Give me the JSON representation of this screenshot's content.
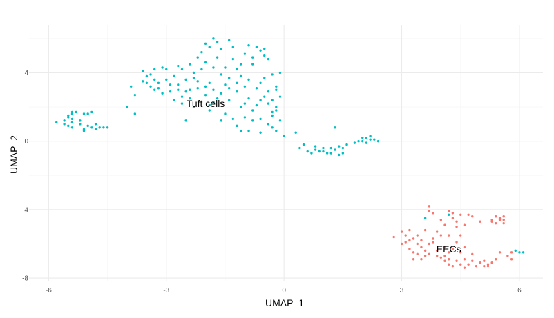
{
  "chart_data": {
    "type": "scatter",
    "title": "",
    "xlabel": "UMAP_1",
    "ylabel": "UMAP_2",
    "xlim": [
      -6.5,
      6.6
    ],
    "ylim": [
      -8.2,
      6.8
    ],
    "x_ticks": [
      -6,
      -3,
      0,
      3,
      6
    ],
    "y_ticks": [
      -8,
      -4,
      0,
      4
    ],
    "x_tick_labels": [
      "-6",
      "-3",
      "0",
      "3",
      "6"
    ],
    "y_tick_labels": [
      "-8",
      "-4",
      "0",
      "4"
    ],
    "grid": true,
    "legend": "none",
    "cluster_labels": [
      {
        "text": "Tuft cells",
        "x": -2.0,
        "y": 2.2
      },
      {
        "text": "EECs",
        "x": 4.2,
        "y": -6.3
      }
    ],
    "series": [
      {
        "color": "#00BFC4",
        "points": [
          [
            -5.8,
            1.1
          ],
          [
            -5.6,
            1.2
          ],
          [
            -5.6,
            1.0
          ],
          [
            -5.5,
            1.5
          ],
          [
            -5.5,
            1.4
          ],
          [
            -5.4,
            1.6
          ],
          [
            -5.4,
            1.7
          ],
          [
            -5.4,
            1.3
          ],
          [
            -5.3,
            1.7
          ],
          [
            -5.4,
            1.1
          ],
          [
            -5.5,
            0.9
          ],
          [
            -5.4,
            0.8
          ],
          [
            -5.2,
            1.2
          ],
          [
            -5.2,
            1.0
          ],
          [
            -5.1,
            1.6
          ],
          [
            -5.1,
            0.7
          ],
          [
            -5.0,
            1.6
          ],
          [
            -5.0,
            0.9
          ],
          [
            -4.9,
            1.7
          ],
          [
            -4.8,
            1.0
          ],
          [
            -4.8,
            0.7
          ],
          [
            -4.7,
            0.8
          ],
          [
            -4.6,
            0.8
          ],
          [
            -4.5,
            0.8
          ],
          [
            -5.1,
            0.6
          ],
          [
            -4.9,
            0.8
          ],
          [
            -4.0,
            2.0
          ],
          [
            -3.9,
            3.2
          ],
          [
            -3.8,
            2.7
          ],
          [
            -3.8,
            1.6
          ],
          [
            -3.6,
            4.1
          ],
          [
            -3.6,
            3.5
          ],
          [
            -3.5,
            3.8
          ],
          [
            -3.4,
            3.9
          ],
          [
            -3.5,
            3.4
          ],
          [
            -3.3,
            3.6
          ],
          [
            -3.3,
            3.0
          ],
          [
            -3.2,
            3.4
          ],
          [
            -3.2,
            3.1
          ],
          [
            -3.1,
            4.3
          ],
          [
            -3.0,
            4.2
          ],
          [
            -3.0,
            3.6
          ],
          [
            -2.9,
            2.9
          ],
          [
            -2.8,
            3.8
          ],
          [
            -2.8,
            2.4
          ],
          [
            -2.7,
            4.4
          ],
          [
            -2.7,
            3.3
          ],
          [
            -2.6,
            4.2
          ],
          [
            -2.6,
            2.6
          ],
          [
            -2.5,
            3.6
          ],
          [
            -2.5,
            1.2
          ],
          [
            -2.4,
            3.0
          ],
          [
            -2.4,
            2.5
          ],
          [
            -2.3,
            4.0
          ],
          [
            -2.3,
            2.0
          ],
          [
            -2.2,
            4.9
          ],
          [
            -2.2,
            3.5
          ],
          [
            -2.1,
            5.2
          ],
          [
            -2.1,
            4.2
          ],
          [
            -2.0,
            3.2
          ],
          [
            -2.0,
            5.7
          ],
          [
            -2.0,
            2.7
          ],
          [
            -1.9,
            5.5
          ],
          [
            -1.9,
            3.4
          ],
          [
            -1.9,
            1.8
          ],
          [
            -1.8,
            6.0
          ],
          [
            -1.8,
            4.3
          ],
          [
            -1.8,
            3.0
          ],
          [
            -1.7,
            5.8
          ],
          [
            -1.7,
            2.5
          ],
          [
            -1.6,
            5.4
          ],
          [
            -1.6,
            1.2
          ],
          [
            -1.5,
            4.3
          ],
          [
            -1.5,
            3.3
          ],
          [
            -1.5,
            1.6
          ],
          [
            -1.4,
            5.9
          ],
          [
            -1.4,
            3.7
          ],
          [
            -1.4,
            2.4
          ],
          [
            -1.3,
            5.5
          ],
          [
            -1.3,
            1.3
          ],
          [
            -1.2,
            3.4
          ],
          [
            -1.2,
            2.9
          ],
          [
            -1.2,
            0.9
          ],
          [
            -1.1,
            4.5
          ],
          [
            -1.1,
            3.8
          ],
          [
            -1.1,
            2.0
          ],
          [
            -1.0,
            3.2
          ],
          [
            -1.0,
            1.4
          ],
          [
            -0.9,
            5.6
          ],
          [
            -0.9,
            3.6
          ],
          [
            -0.9,
            2.5
          ],
          [
            -0.9,
            0.6
          ],
          [
            -0.8,
            4.5
          ],
          [
            -0.8,
            1.8
          ],
          [
            -0.7,
            5.5
          ],
          [
            -0.7,
            3.1
          ],
          [
            -0.7,
            2.1
          ],
          [
            -0.6,
            5.3
          ],
          [
            -0.6,
            1.3
          ],
          [
            -0.5,
            5.0
          ],
          [
            -0.5,
            3.7
          ],
          [
            -0.5,
            2.6
          ],
          [
            -0.4,
            4.8
          ],
          [
            -0.4,
            2.2
          ],
          [
            -0.4,
            1.0
          ],
          [
            -0.3,
            3.9
          ],
          [
            -0.3,
            1.7
          ],
          [
            -0.3,
            0.8
          ],
          [
            -0.2,
            3.2
          ],
          [
            -0.2,
            0.6
          ],
          [
            -0.1,
            4.0
          ],
          [
            -0.1,
            2.6
          ],
          [
            -0.1,
            1.2
          ],
          [
            -0.5,
            5.4
          ],
          [
            -1.0,
            2.2
          ],
          [
            -1.6,
            3.9
          ],
          [
            -2.4,
            4.5
          ],
          [
            -2.7,
            3.0
          ],
          [
            -1.3,
            4.8
          ],
          [
            -0.6,
            0.5
          ],
          [
            -0.8,
            4.9
          ],
          [
            -1.0,
            5.1
          ],
          [
            -1.2,
            4.2
          ],
          [
            -1.4,
            3.1
          ],
          [
            -0.8,
            1.2
          ],
          [
            -0.6,
            2.4
          ],
          [
            -0.4,
            2.9
          ],
          [
            -0.3,
            2.4
          ],
          [
            -0.2,
            1.8
          ],
          [
            -0.2,
            3.0
          ],
          [
            -1.6,
            2.8
          ],
          [
            -1.8,
            2.3
          ],
          [
            -2.0,
            4.6
          ],
          [
            -2.2,
            3.1
          ],
          [
            -2.9,
            3.3
          ],
          [
            -3.1,
            2.8
          ],
          [
            -3.3,
            4.2
          ],
          [
            -2.5,
            2.9
          ],
          [
            -2.3,
            3.7
          ],
          [
            -1.7,
            4.9
          ],
          [
            -0.6,
            3.4
          ],
          [
            -0.2,
            2.0
          ],
          [
            -0.3,
            1.5
          ],
          [
            -1.1,
            0.6
          ],
          [
            -1.9,
            2.1
          ],
          [
            -2.6,
            2.2
          ],
          [
            -3.4,
            3.2
          ],
          [
            0.0,
            0.3
          ],
          [
            0.3,
            0.5
          ],
          [
            0.4,
            -0.4
          ],
          [
            0.5,
            -0.2
          ],
          [
            0.6,
            -0.6
          ],
          [
            0.7,
            -0.7
          ],
          [
            0.8,
            -0.5
          ],
          [
            0.8,
            -0.3
          ],
          [
            0.9,
            -0.6
          ],
          [
            1.0,
            -0.4
          ],
          [
            1.0,
            -0.6
          ],
          [
            1.1,
            -0.7
          ],
          [
            1.2,
            -0.4
          ],
          [
            1.2,
            -0.7
          ],
          [
            1.3,
            0.8
          ],
          [
            1.3,
            -0.5
          ],
          [
            1.4,
            -0.3
          ],
          [
            1.4,
            -0.8
          ],
          [
            1.5,
            -0.7
          ],
          [
            1.5,
            -0.4
          ],
          [
            1.6,
            -0.2
          ],
          [
            1.8,
            -0.1
          ],
          [
            1.9,
            0.0
          ],
          [
            2.0,
            0.2
          ],
          [
            2.0,
            0.0
          ],
          [
            2.1,
            -0.1
          ],
          [
            2.1,
            0.2
          ],
          [
            2.2,
            0.3
          ],
          [
            2.2,
            0.1
          ],
          [
            2.3,
            0.1
          ],
          [
            2.4,
            0.0
          ],
          [
            3.6,
            -4.5
          ],
          [
            4.2,
            -4.3
          ],
          [
            5.9,
            -6.4
          ],
          [
            6.0,
            -6.5
          ],
          [
            6.1,
            -6.5
          ]
        ]
      },
      {
        "color": "#F8766D",
        "points": [
          [
            2.8,
            -5.6
          ],
          [
            3.0,
            -5.3
          ],
          [
            3.1,
            -5.9
          ],
          [
            3.1,
            -5.5
          ],
          [
            3.2,
            -5.2
          ],
          [
            3.2,
            -6.3
          ],
          [
            3.3,
            -5.7
          ],
          [
            3.3,
            -6.5
          ],
          [
            3.4,
            -5.5
          ],
          [
            3.4,
            -6.0
          ],
          [
            3.4,
            -6.6
          ],
          [
            3.5,
            -6.2
          ],
          [
            3.5,
            -5.8
          ],
          [
            3.6,
            -6.7
          ],
          [
            3.6,
            -6.4
          ],
          [
            3.7,
            -3.8
          ],
          [
            3.7,
            -6.0
          ],
          [
            3.7,
            -6.6
          ],
          [
            3.8,
            -4.2
          ],
          [
            3.8,
            -5.7
          ],
          [
            3.9,
            -6.4
          ],
          [
            3.9,
            -5.3
          ],
          [
            4.0,
            -4.6
          ],
          [
            4.0,
            -6.8
          ],
          [
            4.1,
            -4.9
          ],
          [
            4.1,
            -6.2
          ],
          [
            4.1,
            -7.0
          ],
          [
            4.2,
            -4.1
          ],
          [
            4.2,
            -5.5
          ],
          [
            4.2,
            -6.5
          ],
          [
            4.2,
            -7.2
          ],
          [
            4.3,
            -4.5
          ],
          [
            4.3,
            -6.3
          ],
          [
            4.3,
            -7.3
          ],
          [
            4.4,
            -4.7
          ],
          [
            4.4,
            -5.9
          ],
          [
            4.4,
            -7.0
          ],
          [
            4.5,
            -4.3
          ],
          [
            4.5,
            -6.5
          ],
          [
            4.5,
            -7.2
          ],
          [
            4.6,
            -4.9
          ],
          [
            4.6,
            -7.4
          ],
          [
            4.6,
            -6.9
          ],
          [
            4.7,
            -7.2
          ],
          [
            4.8,
            -4.4
          ],
          [
            4.8,
            -7.0
          ],
          [
            4.9,
            -7.3
          ],
          [
            5.0,
            -4.7
          ],
          [
            5.0,
            -7.1
          ],
          [
            5.1,
            -7.3
          ],
          [
            5.2,
            -7.3
          ],
          [
            5.3,
            -7.1
          ],
          [
            5.3,
            -4.6
          ],
          [
            5.4,
            -4.8
          ],
          [
            5.4,
            -6.9
          ],
          [
            5.5,
            -4.5
          ],
          [
            5.5,
            -4.6
          ],
          [
            5.5,
            -6.5
          ],
          [
            5.6,
            -4.6
          ],
          [
            5.6,
            -4.8
          ],
          [
            5.6,
            -4.4
          ],
          [
            5.7,
            -6.7
          ],
          [
            5.8,
            -6.9
          ],
          [
            5.8,
            -6.5
          ],
          [
            5.3,
            -4.7
          ],
          [
            4.7,
            -4.3
          ],
          [
            4.0,
            -5.5
          ],
          [
            3.8,
            -5.9
          ],
          [
            3.6,
            -5.2
          ],
          [
            4.4,
            -5.0
          ],
          [
            4.8,
            -6.6
          ],
          [
            4.6,
            -6.2
          ],
          [
            3.9,
            -6.7
          ],
          [
            3.5,
            -6.9
          ],
          [
            3.3,
            -6.9
          ],
          [
            4.2,
            -6.9
          ],
          [
            5.1,
            -7.0
          ],
          [
            5.2,
            -7.2
          ],
          [
            4.5,
            -5.5
          ],
          [
            4.1,
            -6.7
          ],
          [
            3.7,
            -4.1
          ],
          [
            4.3,
            -4.2
          ],
          [
            5.4,
            -4.4
          ],
          [
            3.0,
            -6.0
          ],
          [
            3.2,
            -5.8
          ]
        ]
      }
    ]
  }
}
